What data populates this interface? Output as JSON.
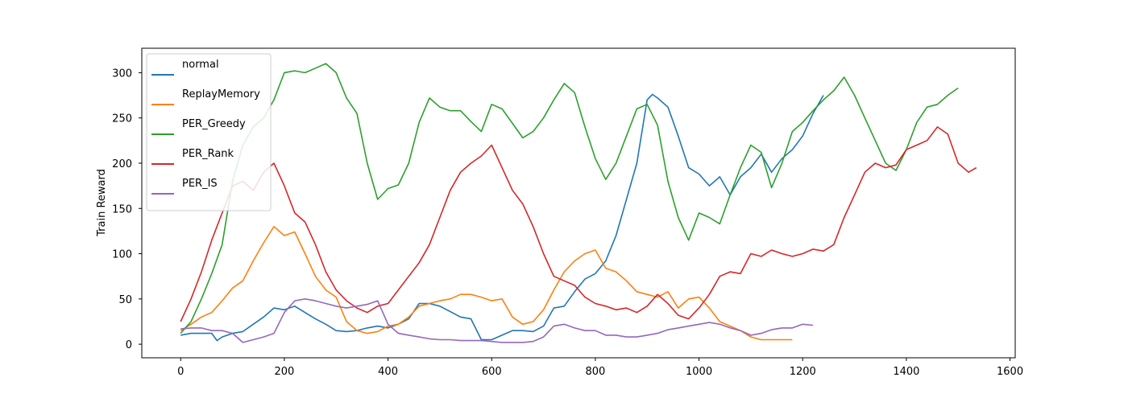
{
  "chart_data": {
    "type": "line",
    "title": "",
    "xlabel": "",
    "ylabel": "Train Reward",
    "xlim": [
      -75,
      1610
    ],
    "ylim": [
      -15,
      327
    ],
    "xticks": [
      0,
      200,
      400,
      600,
      800,
      1000,
      1200,
      1400,
      1600
    ],
    "yticks": [
      0,
      50,
      100,
      150,
      200,
      250,
      300
    ],
    "grid": false,
    "legend_position": "top-left",
    "series": [
      {
        "name": "normal",
        "color": "#1f77b4",
        "x": [
          0,
          20,
          40,
          60,
          70,
          80,
          100,
          120,
          140,
          160,
          180,
          200,
          220,
          240,
          260,
          280,
          300,
          320,
          340,
          360,
          380,
          400,
          420,
          440,
          460,
          480,
          500,
          520,
          540,
          560,
          580,
          600,
          620,
          640,
          660,
          680,
          700,
          720,
          740,
          760,
          780,
          800,
          820,
          840,
          860,
          880,
          900,
          910,
          920,
          940,
          960,
          980,
          1000,
          1020,
          1040,
          1060,
          1080,
          1100,
          1120,
          1140,
          1160,
          1180,
          1200,
          1220,
          1240
        ],
        "y": [
          10,
          12,
          12,
          12,
          4,
          8,
          12,
          14,
          22,
          30,
          40,
          38,
          42,
          35,
          28,
          22,
          15,
          14,
          15,
          18,
          20,
          18,
          22,
          28,
          45,
          45,
          42,
          36,
          30,
          28,
          5,
          5,
          10,
          15,
          15,
          14,
          20,
          40,
          42,
          58,
          72,
          78,
          92,
          120,
          160,
          200,
          270,
          276,
          272,
          262,
          230,
          195,
          188,
          175,
          185,
          165,
          185,
          195,
          210,
          190,
          205,
          215,
          230,
          255,
          275
        ]
      },
      {
        "name": "ReplayMemory",
        "color": "#ff7f0e",
        "x": [
          0,
          20,
          40,
          60,
          80,
          100,
          120,
          140,
          160,
          180,
          200,
          220,
          240,
          260,
          280,
          300,
          320,
          340,
          360,
          380,
          400,
          420,
          440,
          460,
          480,
          500,
          520,
          540,
          560,
          580,
          600,
          620,
          640,
          660,
          680,
          700,
          720,
          740,
          760,
          780,
          800,
          820,
          840,
          860,
          880,
          900,
          920,
          940,
          960,
          980,
          1000,
          1020,
          1040,
          1060,
          1080,
          1100,
          1120,
          1140,
          1160,
          1180
        ],
        "y": [
          15,
          22,
          30,
          35,
          48,
          62,
          70,
          92,
          112,
          130,
          120,
          124,
          100,
          75,
          60,
          52,
          25,
          15,
          12,
          14,
          20,
          22,
          30,
          42,
          45,
          48,
          50,
          55,
          55,
          52,
          48,
          50,
          30,
          22,
          25,
          38,
          60,
          80,
          92,
          100,
          104,
          84,
          80,
          70,
          58,
          55,
          52,
          58,
          40,
          50,
          52,
          40,
          25,
          20,
          15,
          8,
          5,
          5,
          5,
          5
        ]
      },
      {
        "name": "PER_Greedy",
        "color": "#2ca02c",
        "x": [
          0,
          20,
          40,
          60,
          80,
          100,
          120,
          140,
          160,
          180,
          200,
          220,
          240,
          260,
          280,
          300,
          320,
          340,
          360,
          380,
          400,
          420,
          440,
          460,
          480,
          500,
          520,
          540,
          560,
          580,
          600,
          620,
          640,
          660,
          680,
          700,
          720,
          740,
          760,
          780,
          800,
          820,
          840,
          860,
          880,
          900,
          920,
          940,
          960,
          980,
          1000,
          1020,
          1040,
          1060,
          1080,
          1100,
          1120,
          1140,
          1160,
          1180,
          1200,
          1220,
          1240,
          1260,
          1280,
          1300,
          1320,
          1340,
          1360,
          1380,
          1400,
          1420,
          1440,
          1460,
          1480,
          1500
        ],
        "y": [
          12,
          25,
          50,
          78,
          110,
          180,
          220,
          240,
          250,
          270,
          300,
          302,
          300,
          305,
          310,
          300,
          272,
          255,
          200,
          160,
          172,
          176,
          200,
          245,
          272,
          262,
          258,
          258,
          246,
          235,
          265,
          260,
          244,
          228,
          235,
          250,
          270,
          288,
          278,
          240,
          205,
          182,
          200,
          230,
          260,
          265,
          242,
          180,
          140,
          115,
          145,
          140,
          133,
          165,
          195,
          220,
          212,
          173,
          200,
          235,
          245,
          258,
          270,
          280,
          295,
          275,
          250,
          225,
          200,
          192,
          215,
          245,
          262,
          265,
          275,
          283
        ]
      },
      {
        "name": "PER_Rank",
        "color": "#d62728",
        "x": [
          0,
          20,
          40,
          60,
          80,
          100,
          120,
          140,
          160,
          180,
          200,
          220,
          240,
          260,
          280,
          300,
          320,
          340,
          360,
          380,
          400,
          420,
          440,
          460,
          480,
          500,
          520,
          540,
          560,
          580,
          600,
          620,
          640,
          660,
          680,
          700,
          720,
          740,
          760,
          780,
          800,
          820,
          840,
          860,
          880,
          900,
          920,
          940,
          960,
          980,
          1000,
          1020,
          1040,
          1060,
          1080,
          1100,
          1120,
          1140,
          1160,
          1180,
          1200,
          1220,
          1240,
          1260,
          1280,
          1300,
          1320,
          1340,
          1360,
          1380,
          1400,
          1420,
          1440,
          1460,
          1480,
          1500,
          1520,
          1535
        ],
        "y": [
          25,
          50,
          80,
          115,
          145,
          175,
          180,
          170,
          190,
          200,
          175,
          145,
          135,
          110,
          80,
          60,
          48,
          40,
          35,
          42,
          45,
          60,
          75,
          90,
          110,
          140,
          170,
          190,
          200,
          208,
          220,
          195,
          170,
          155,
          130,
          100,
          75,
          70,
          65,
          52,
          45,
          42,
          38,
          40,
          35,
          42,
          55,
          45,
          32,
          28,
          40,
          55,
          75,
          80,
          78,
          100,
          97,
          104,
          100,
          97,
          100,
          105,
          103,
          110,
          140,
          165,
          190,
          200,
          195,
          198,
          215,
          220,
          225,
          240,
          232,
          200,
          190,
          195
        ]
      },
      {
        "name": "PER_IS",
        "color": "#9467bd",
        "x": [
          0,
          20,
          40,
          60,
          80,
          100,
          120,
          140,
          160,
          180,
          200,
          220,
          240,
          260,
          280,
          300,
          320,
          340,
          360,
          380,
          400,
          420,
          440,
          460,
          480,
          500,
          520,
          540,
          560,
          580,
          600,
          620,
          640,
          660,
          680,
          700,
          720,
          740,
          760,
          780,
          800,
          820,
          840,
          860,
          880,
          900,
          920,
          940,
          960,
          980,
          1000,
          1020,
          1040,
          1060,
          1080,
          1100,
          1120,
          1140,
          1160,
          1180,
          1200,
          1220
        ],
        "y": [
          17,
          18,
          18,
          15,
          15,
          12,
          2,
          5,
          8,
          12,
          35,
          48,
          50,
          48,
          45,
          42,
          40,
          42,
          44,
          48,
          22,
          12,
          10,
          8,
          6,
          5,
          5,
          4,
          4,
          4,
          3,
          2,
          2,
          2,
          3,
          8,
          20,
          22,
          18,
          15,
          15,
          10,
          10,
          8,
          8,
          10,
          12,
          16,
          18,
          20,
          22,
          24,
          22,
          18,
          15,
          10,
          12,
          16,
          18,
          18,
          22,
          21
        ]
      }
    ]
  }
}
